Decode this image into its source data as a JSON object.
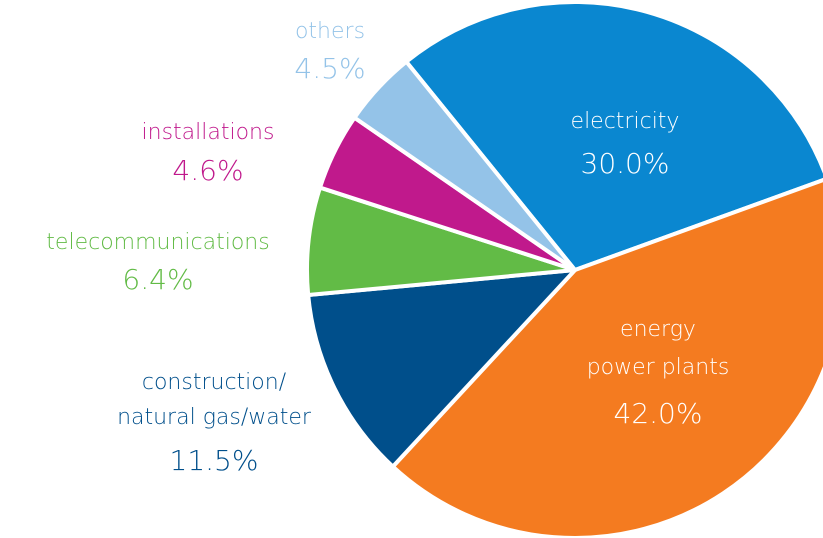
{
  "chart_data": {
    "type": "pie",
    "categories": [
      [
        "electricity"
      ],
      [
        "energy",
        "power plants"
      ],
      [
        "construction/",
        "natural gas/water"
      ],
      [
        "telecommunications"
      ],
      [
        "installations"
      ],
      [
        "others"
      ]
    ],
    "values": [
      30.0,
      42.0,
      11.5,
      6.4,
      4.6,
      4.5
    ],
    "value_labels": [
      "30.0%",
      "42.0%",
      "11.5%",
      "6.4%",
      "4.6%",
      "4.5%"
    ],
    "colors": [
      "#0a87d0",
      "#f47b20",
      "#004f8b",
      "#62bb46",
      "#c0198c",
      "#94c3e8"
    ]
  }
}
